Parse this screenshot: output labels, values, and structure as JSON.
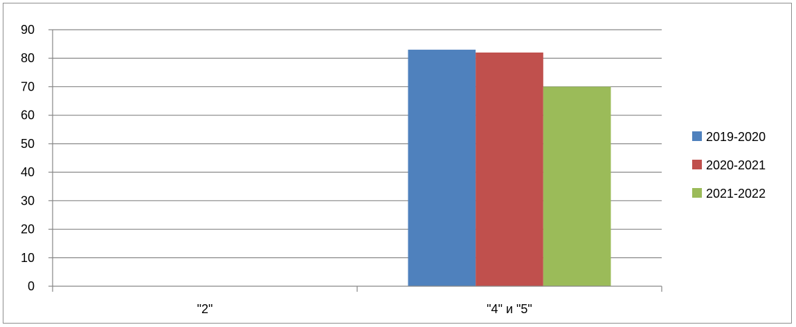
{
  "chart_data": {
    "type": "bar",
    "title": "",
    "xlabel": "",
    "ylabel": "",
    "categories": [
      "\"2\"",
      "\"4\" и \"5\""
    ],
    "series": [
      {
        "name": "2019-2020",
        "values": [
          0,
          83
        ],
        "color": "#4F81BD"
      },
      {
        "name": "2020-2021",
        "values": [
          0,
          82
        ],
        "color": "#C0504D"
      },
      {
        "name": "2021-2022",
        "values": [
          0,
          70
        ],
        "color": "#9BBB59"
      }
    ],
    "ylim": [
      0,
      90
    ],
    "yticks": [
      "0",
      "10",
      "20",
      "30",
      "40",
      "50",
      "60",
      "70",
      "80",
      "90"
    ],
    "grid": true,
    "legend": "right"
  }
}
